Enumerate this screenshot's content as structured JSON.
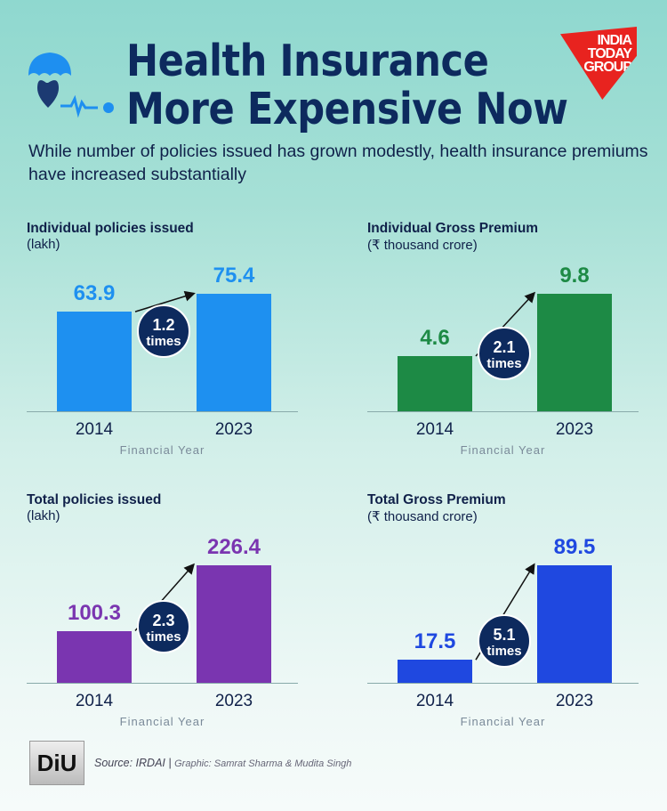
{
  "header": {
    "title_line1": "Health Insurance",
    "title_line2": "More Expensive Now",
    "subtitle": "While number of policies issued has grown modestly, health insurance premiums have increased substantially",
    "logo_text": [
      "INDIA",
      "TODAY",
      "GROUP"
    ]
  },
  "chart_data": [
    {
      "type": "bar",
      "title": "Individual policies issued",
      "unit": "(lakh)",
      "categories": [
        "2014",
        "2023"
      ],
      "values": [
        63.9,
        75.4
      ],
      "xlabel": "Financial Year",
      "growth": "1.2",
      "growth_label": "times",
      "color": "#1e90f0"
    },
    {
      "type": "bar",
      "title": "Individual Gross Premium",
      "unit": "(₹ thousand crore)",
      "categories": [
        "2014",
        "2023"
      ],
      "values": [
        4.6,
        9.8
      ],
      "xlabel": "Financial Year",
      "growth": "2.1",
      "growth_label": "times",
      "color": "#1d8a45"
    },
    {
      "type": "bar",
      "title": "Total policies issued",
      "unit": "(lakh)",
      "categories": [
        "2014",
        "2023"
      ],
      "values": [
        100.3,
        226.4
      ],
      "xlabel": "Financial Year",
      "growth": "2.3",
      "growth_label": "times",
      "color": "#7a35b0"
    },
    {
      "type": "bar",
      "title": "Total Gross Premium",
      "unit": "(₹ thousand crore)",
      "categories": [
        "2014",
        "2023"
      ],
      "values": [
        17.5,
        89.5
      ],
      "xlabel": "Financial Year",
      "growth": "5.1",
      "growth_label": "times",
      "color": "#1f48e0"
    }
  ],
  "footer": {
    "logo_text": "DiU",
    "source": "Source: IRDAI",
    "separator": "|",
    "credit": "Graphic: Samrat Sharma & Mudita Singh"
  }
}
